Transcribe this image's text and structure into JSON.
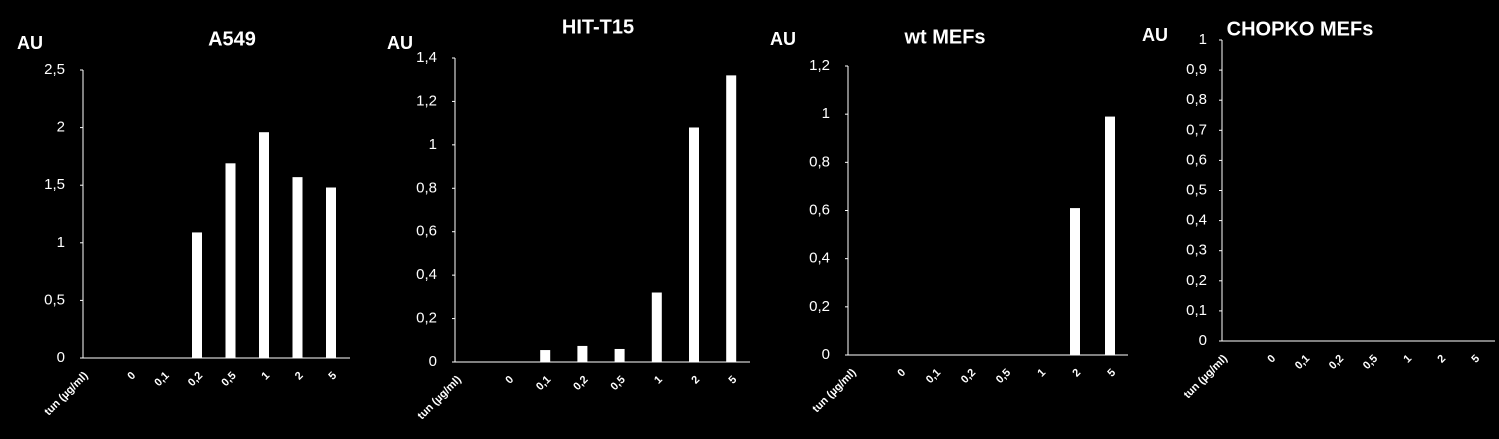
{
  "chart_data": [
    {
      "type": "bar",
      "title": "A549",
      "y_label": "AU",
      "x_label": "tun (µg/ml)",
      "categories": [
        "0",
        "0,1",
        "0,2",
        "0,5",
        "1",
        "2",
        "5"
      ],
      "values": [
        0,
        0,
        1.09,
        1.69,
        1.96,
        1.57,
        1.48
      ],
      "color": "#ffffff",
      "ylim": [
        0,
        2.5
      ],
      "yticks": [
        0,
        {
          "value": 0.5,
          "label": "0,5"
        },
        1,
        {
          "value": 1.5,
          "label": "1,5"
        },
        2,
        {
          "value": 2.5,
          "label": "2,5"
        }
      ]
    },
    {
      "type": "bar",
      "title": "HIT-T15",
      "y_label": "AU",
      "x_label": "tun (µg/ml)",
      "categories": [
        "0",
        "0,1",
        "0,2",
        "0,5",
        "1",
        "2",
        "5"
      ],
      "values": [
        0,
        0.055,
        0.074,
        0.06,
        0.32,
        1.08,
        1.32
      ],
      "color": "#ffffff",
      "ylim": [
        0,
        1.4
      ],
      "yticks": [
        0,
        {
          "value": 0.2,
          "label": "0,2"
        },
        {
          "value": 0.4,
          "label": "0,4"
        },
        {
          "value": 0.6,
          "label": "0,6"
        },
        {
          "value": 0.8,
          "label": "0,8"
        },
        1,
        {
          "value": 1.2,
          "label": "1,2"
        },
        {
          "value": 1.4,
          "label": "1,4"
        }
      ]
    },
    {
      "type": "bar",
      "title": "wt MEFs",
      "y_label": "AU",
      "x_label": "tun (µg/ml)",
      "categories": [
        "0",
        "0,1",
        "0,2",
        "0,5",
        "1",
        "2",
        "5"
      ],
      "values": [
        0,
        0,
        0,
        0,
        0,
        0.61,
        0.99
      ],
      "color": "#ffffff",
      "ylim": [
        0,
        1.2
      ],
      "yticks": [
        0,
        {
          "value": 0.2,
          "label": "0,2"
        },
        {
          "value": 0.4,
          "label": "0,4"
        },
        {
          "value": 0.6,
          "label": "0,6"
        },
        {
          "value": 0.8,
          "label": "0,8"
        },
        1,
        {
          "value": 1.2,
          "label": "1,2"
        }
      ]
    },
    {
      "type": "bar",
      "title": "CHOPKO  MEFs",
      "y_label": "AU",
      "x_label": "tun (µg/ml)",
      "categories": [
        "0",
        "0,1",
        "0,2",
        "0,5",
        "1",
        "2",
        "5"
      ],
      "values": [
        0,
        0,
        0,
        0,
        0,
        0,
        0
      ],
      "color": "#ffffff",
      "ylim": [
        0,
        1
      ],
      "yticks": [
        0,
        {
          "value": 0.1,
          "label": "0,1"
        },
        {
          "value": 0.2,
          "label": "0,2"
        },
        {
          "value": 0.3,
          "label": "0,3"
        },
        {
          "value": 0.4,
          "label": "0,4"
        },
        {
          "value": 0.5,
          "label": "0,5"
        },
        {
          "value": 0.6,
          "label": "0,6"
        },
        {
          "value": 0.7,
          "label": "0,7"
        },
        {
          "value": 0.8,
          "label": "0,8"
        },
        {
          "value": 0.9,
          "label": "0,9"
        },
        1
      ]
    }
  ]
}
